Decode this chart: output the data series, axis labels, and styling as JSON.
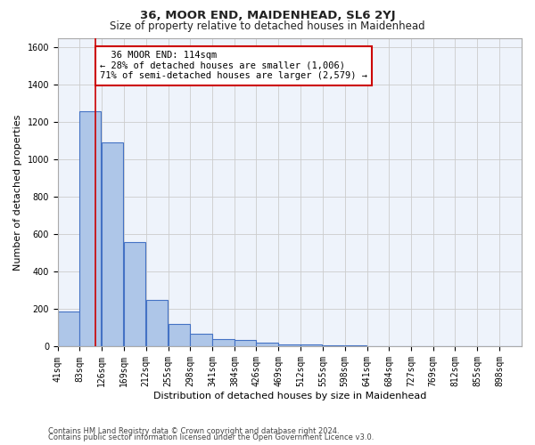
{
  "title": "36, MOOR END, MAIDENHEAD, SL6 2YJ",
  "subtitle": "Size of property relative to detached houses in Maidenhead",
  "xlabel": "Distribution of detached houses by size in Maidenhead",
  "ylabel": "Number of detached properties",
  "footnote1": "Contains HM Land Registry data © Crown copyright and database right 2024.",
  "footnote2": "Contains public sector information licensed under the Open Government Licence v3.0.",
  "bin_labels": [
    "41sqm",
    "83sqm",
    "126sqm",
    "169sqm",
    "212sqm",
    "255sqm",
    "298sqm",
    "341sqm",
    "384sqm",
    "426sqm",
    "469sqm",
    "512sqm",
    "555sqm",
    "598sqm",
    "641sqm",
    "684sqm",
    "727sqm",
    "769sqm",
    "812sqm",
    "855sqm",
    "898sqm"
  ],
  "bin_edges": [
    41,
    83,
    126,
    169,
    212,
    255,
    298,
    341,
    384,
    426,
    469,
    512,
    555,
    598,
    641,
    684,
    727,
    769,
    812,
    855,
    898,
    941
  ],
  "counts": [
    190,
    1260,
    1090,
    560,
    250,
    120,
    70,
    40,
    35,
    20,
    13,
    12,
    8,
    5,
    4,
    3,
    2,
    1,
    1,
    1,
    1
  ],
  "bar_color": "#aec6e8",
  "bar_edge_color": "#4472c4",
  "bar_linewidth": 0.8,
  "property_size": 114,
  "property_label": "36 MOOR END: 114sqm",
  "pct_smaller": 28,
  "count_smaller": 1006,
  "pct_larger_semi": 71,
  "count_larger_semi": 2579,
  "annotation_line_color": "#cc0000",
  "annotation_box_edge_color": "#cc0000",
  "ylim": [
    0,
    1650
  ],
  "yticks": [
    0,
    200,
    400,
    600,
    800,
    1000,
    1200,
    1400,
    1600
  ],
  "grid_color": "#cccccc",
  "background_color": "#ffffff",
  "plot_bg_color": "#eef3fb",
  "title_fontsize": 9.5,
  "subtitle_fontsize": 8.5,
  "annotation_fontsize": 7.5,
  "axis_label_fontsize": 8,
  "tick_fontsize": 7,
  "ylabel_fontsize": 8
}
